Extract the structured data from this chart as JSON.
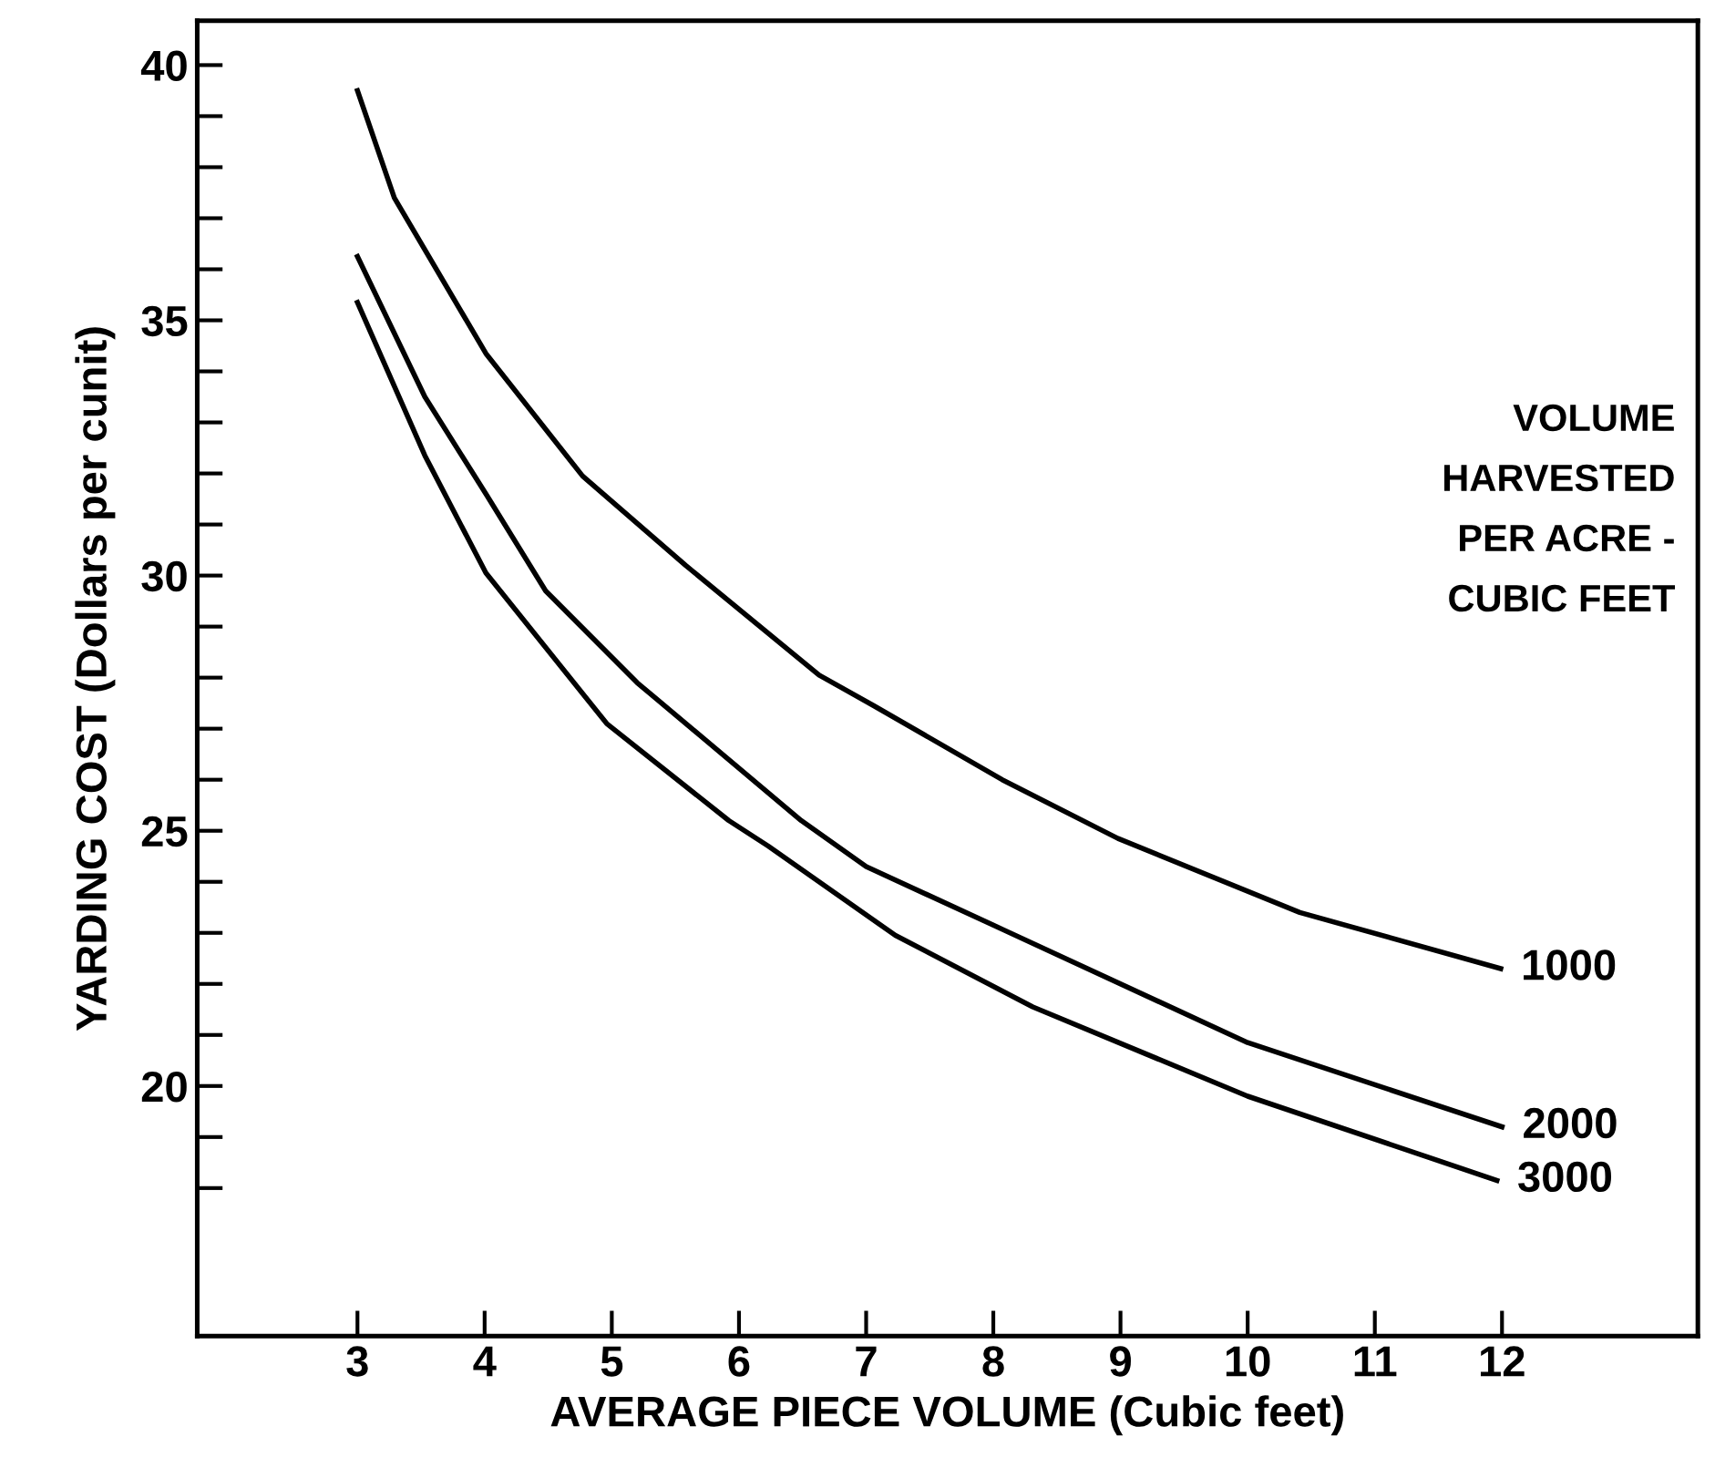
{
  "chart_data": {
    "type": "line",
    "xlabel": "AVERAGE PIECE VOLUME (Cubic feet)",
    "ylabel": "YARDING COST (Dollars per cunit)",
    "legend_title": "VOLUME\nHARVESTED\nPER ACRE -\nCUBIC FEET",
    "xlim": [
      1.74,
      13.54
    ],
    "ylim": [
      15.1,
      40.87
    ],
    "xticks": [
      3,
      4,
      5,
      6,
      7,
      8,
      9,
      10,
      11,
      12
    ],
    "yticks": [
      {
        "value": 18,
        "label": null
      },
      {
        "value": 19,
        "label": null
      },
      20,
      {
        "value": 21,
        "label": null
      },
      {
        "value": 22,
        "label": null
      },
      {
        "value": 23,
        "label": null
      },
      {
        "value": 24,
        "label": null
      },
      25,
      {
        "value": 26,
        "label": null
      },
      {
        "value": 27,
        "label": null
      },
      {
        "value": 28,
        "label": null
      },
      {
        "value": 29,
        "label": null
      },
      30,
      {
        "value": 31,
        "label": null
      },
      {
        "value": 32,
        "label": null
      },
      {
        "value": 33,
        "label": null
      },
      {
        "value": 34,
        "label": null
      },
      35,
      {
        "value": 36,
        "label": null
      },
      {
        "value": 37,
        "label": null
      },
      {
        "value": 38,
        "label": null
      },
      {
        "value": 39,
        "label": null
      },
      40
    ],
    "grid": false,
    "marker": "none",
    "line_style": "solid",
    "series": [
      {
        "name": "1000",
        "color": "#000000",
        "x": [
          3.0,
          3.29,
          4.01,
          4.77,
          5.58,
          6.63,
          7.06,
          8.07,
          8.98,
          10.41,
          11.99
        ],
        "values": [
          39.5,
          37.4,
          34.35,
          31.95,
          30.2,
          28.05,
          27.45,
          26.0,
          24.85,
          23.4,
          22.3
        ]
      },
      {
        "name": "2000",
        "color": "#000000",
        "x": [
          3.0,
          3.53,
          4.01,
          4.48,
          5.2,
          6.49,
          7.0,
          8.0,
          10.0,
          12.0
        ],
        "values": [
          36.25,
          33.5,
          31.6,
          29.7,
          27.9,
          25.2,
          24.3,
          23.15,
          20.85,
          19.2
        ]
      },
      {
        "name": "3000",
        "color": "#000000",
        "x": [
          3.0,
          3.53,
          4.01,
          4.96,
          5.92,
          6.23,
          7.23,
          8.31,
          10.0,
          11.96
        ],
        "values": [
          35.35,
          32.35,
          30.05,
          27.1,
          25.2,
          24.7,
          22.95,
          21.55,
          19.8,
          18.15
        ]
      }
    ]
  }
}
